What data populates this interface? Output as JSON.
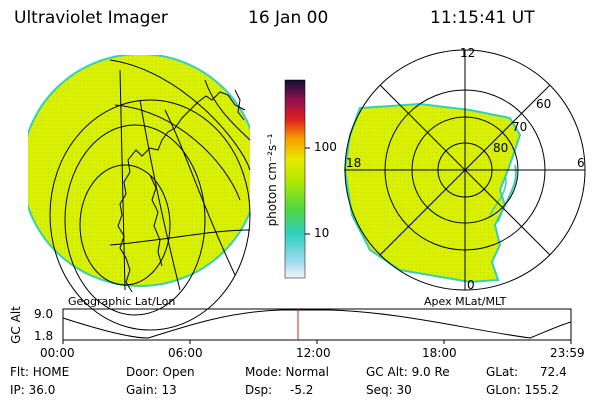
{
  "header": {
    "instrument": "Ultraviolet Imager",
    "date": "16 Jan 00",
    "time": "11:15:41 UT"
  },
  "colorbar": {
    "unit_label": "photon cm⁻²s⁻¹",
    "ticks": [
      "100",
      "10"
    ]
  },
  "geo_map": {
    "caption": "Geographic Lat/Lon"
  },
  "polar_map": {
    "caption": "Apex MLat/MLT",
    "mlt_labels": [
      "12",
      "18",
      "6",
      "0"
    ],
    "lat_labels": [
      "60",
      "70",
      "80"
    ]
  },
  "altitude_plot": {
    "ylabel": "GC Alt",
    "y_ticks": [
      "9.0",
      "1.8"
    ],
    "x_ticks": [
      "00:00",
      "06:00",
      "12:00",
      "18:00",
      "23:59"
    ],
    "current_marker_time": "11:15"
  },
  "status": {
    "flt_label": "Flt: HOME",
    "ip_label": "IP: 36.0",
    "door_label": "Door: Open",
    "gain_label": "Gain: 13",
    "mode_label": "Mode: Normal",
    "dsp_label": "Dsp:",
    "dsp_value": "-5.2",
    "gcalt_label": "GC Alt: 9.0 Re",
    "seq_label": "Seq: 30",
    "glat_label": "GLat:",
    "glat_value": "72.4",
    "glon_label": "GLon: 155.2"
  },
  "colors": {
    "aurora_fill": "#d4f000",
    "aurora_edge": "#33d0b8",
    "marker": "#cc2222"
  }
}
